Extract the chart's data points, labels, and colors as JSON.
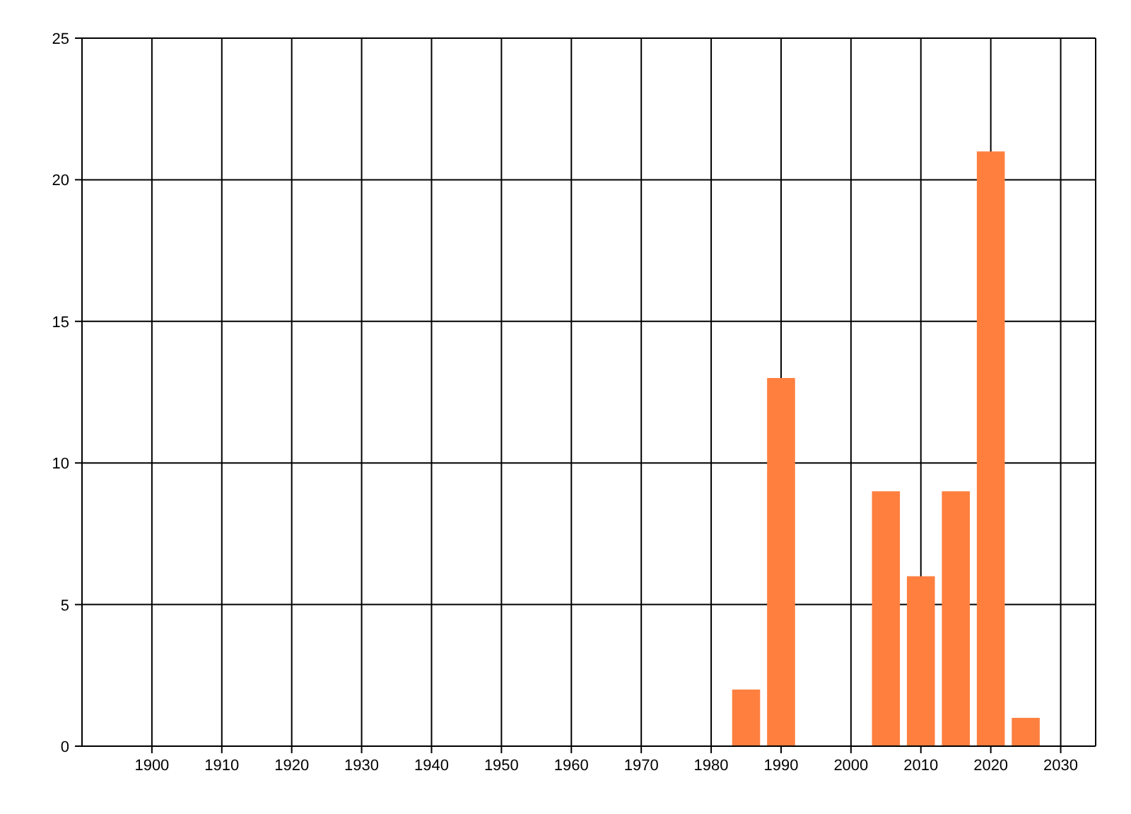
{
  "chart_data": {
    "type": "bar",
    "x": [
      1985,
      1990,
      2005,
      2010,
      2015,
      2020,
      2025
    ],
    "values": [
      2,
      13,
      9,
      6,
      9,
      21,
      1
    ],
    "color": "#ff7f3f",
    "xlim": [
      1890,
      2035
    ],
    "xticks": [
      1900,
      1910,
      1920,
      1930,
      1940,
      1950,
      1960,
      1970,
      1980,
      1990,
      2000,
      2010,
      2020,
      2030
    ],
    "ylim": [
      0,
      25
    ],
    "yticks": [
      0,
      5,
      10,
      15,
      20,
      25
    ],
    "grid": true
  }
}
